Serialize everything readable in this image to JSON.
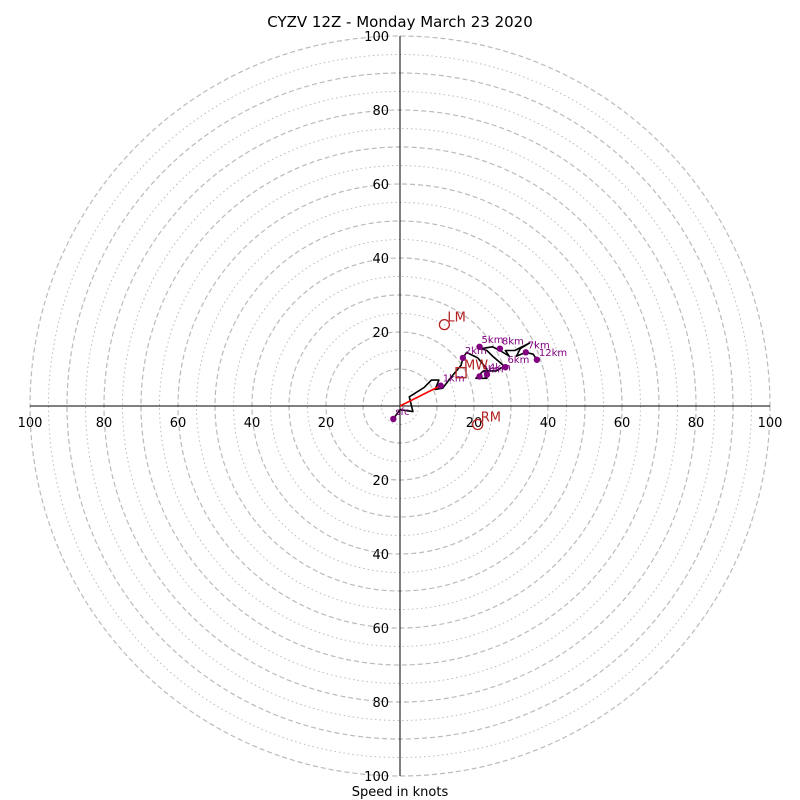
{
  "chart_data": {
    "type": "hodograph",
    "title": "CYZV 12Z - Monday March 23 2020",
    "xlabel": "Speed in knots",
    "ylabel": "",
    "range": [
      -100,
      100
    ],
    "rings_major": [
      10,
      20,
      30,
      40,
      50,
      60,
      70,
      80,
      90,
      100
    ],
    "rings_minor": [
      5,
      15,
      25,
      35,
      45,
      55,
      65,
      75,
      85,
      95
    ],
    "tick_labels": [
      "100",
      "80",
      "60",
      "40",
      "20",
      "20",
      "40",
      "60",
      "80",
      "100"
    ],
    "tick_values": [
      -100,
      -80,
      -60,
      -40,
      -20,
      20,
      40,
      60,
      80,
      100
    ],
    "grid": true,
    "colors": {
      "hodograph": "#000000",
      "low_level": "#ff0000",
      "markers": "#800080",
      "storm_motion": "#b22222",
      "grid": "#bbbbbb"
    },
    "trace": [
      [
        -1.8,
        -3.5
      ],
      [
        0.0,
        -1.0
      ],
      [
        3.5,
        -1.5
      ],
      [
        2.5,
        2.5
      ],
      [
        6.5,
        5.0
      ],
      [
        8.5,
        7.0
      ],
      [
        10.5,
        7.0
      ],
      [
        9.5,
        4.5
      ],
      [
        11.5,
        4.8
      ],
      [
        14.0,
        8.0
      ],
      [
        16.5,
        11.0
      ],
      [
        17.0,
        13.0
      ],
      [
        18.0,
        14.5
      ],
      [
        21.0,
        13.0
      ],
      [
        23.5,
        10.0
      ],
      [
        23.0,
        8.0
      ],
      [
        23.5,
        7.5
      ],
      [
        20.5,
        7.5
      ],
      [
        22.5,
        9.5
      ],
      [
        26.0,
        9.5
      ],
      [
        28.5,
        11.0
      ],
      [
        28.5,
        10.5
      ],
      [
        25.0,
        13.5
      ],
      [
        23.5,
        15.0
      ],
      [
        22.0,
        15.5
      ],
      [
        25.0,
        16.0
      ],
      [
        27.0,
        15.0
      ],
      [
        29.5,
        13.5
      ],
      [
        28.5,
        15.0
      ],
      [
        31.0,
        15.0
      ],
      [
        35.0,
        17.0
      ],
      [
        32.5,
        15.5
      ],
      [
        31.5,
        13.5
      ],
      [
        34.0,
        14.5
      ],
      [
        36.0,
        14.0
      ],
      [
        37.0,
        12.5
      ]
    ],
    "low_level_segment": [
      [
        0.0,
        0.0
      ],
      [
        11.0,
        5.5
      ]
    ],
    "height_markers": [
      {
        "label": "sfc",
        "u": -1.8,
        "v": -3.5
      },
      {
        "label": "1km",
        "u": 11.0,
        "v": 5.5
      },
      {
        "label": "2km",
        "u": 17.0,
        "v": 13.0
      },
      {
        "label": "3km",
        "u": 21.5,
        "v": 8.0
      },
      {
        "label": "4km",
        "u": 23.5,
        "v": 8.5
      },
      {
        "label": "5km",
        "u": 21.5,
        "v": 16.0
      },
      {
        "label": "6km",
        "u": 28.5,
        "v": 10.5
      },
      {
        "label": "7km",
        "u": 34.0,
        "v": 14.5
      },
      {
        "label": "8km",
        "u": 27.0,
        "v": 15.5
      },
      {
        "label": "12km",
        "u": 37.0,
        "v": 12.5
      }
    ],
    "storm_motion": [
      {
        "label": "LM",
        "u": 12.0,
        "v": 22.0,
        "symbol": "circle"
      },
      {
        "label": "RM",
        "u": 21.0,
        "v": -5.0,
        "symbol": "circle"
      },
      {
        "label": "MW",
        "u": 16.5,
        "v": 9.0,
        "symbol": "square"
      }
    ]
  }
}
